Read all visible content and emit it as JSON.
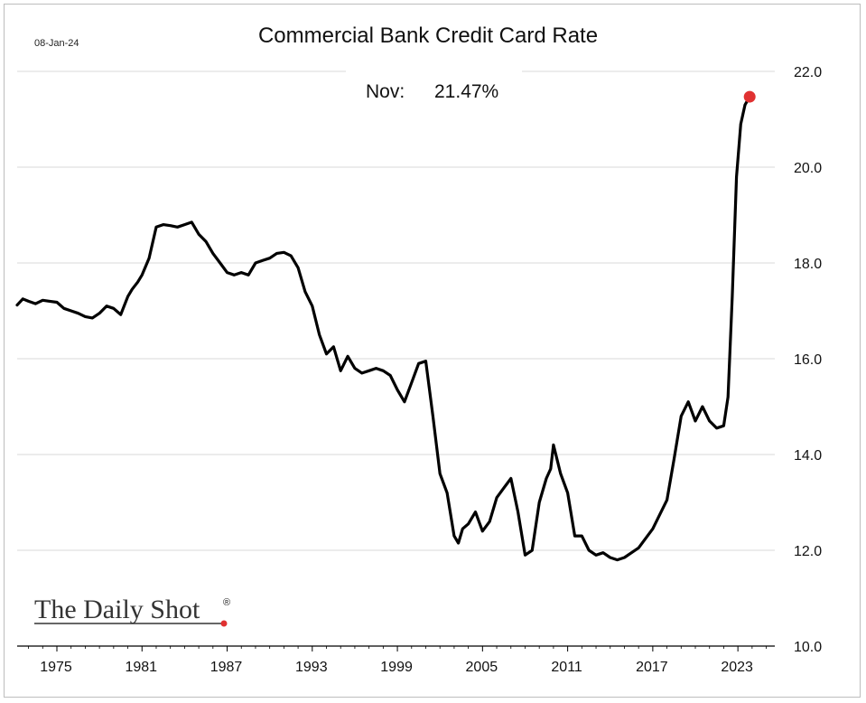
{
  "colors": {
    "line": "#000000",
    "marker": "#e03131",
    "grid": "#d9d9d9",
    "axis": "#000000"
  },
  "chart_data": {
    "type": "line",
    "title": "Commercial Bank Credit Card Rate",
    "date_label": "08-Jan-24",
    "annotation": {
      "label": "Nov:",
      "value": "21.47%"
    },
    "xlabel": "",
    "ylabel": "",
    "xlim": [
      1972.2,
      2025.6
    ],
    "ylim": [
      10.0,
      22.0
    ],
    "x_ticks": [
      1975,
      1981,
      1987,
      1993,
      1999,
      2005,
      2011,
      2017,
      2023
    ],
    "y_ticks": [
      "10.0",
      "12.0",
      "14.0",
      "16.0",
      "18.0",
      "20.0",
      "22.0"
    ],
    "y_axis_side": "right",
    "grid": "horizontal",
    "last_point": {
      "x": 2023.83,
      "y": 21.47
    },
    "series": [
      {
        "x": [
          1972.2,
          1972.6,
          1973.0,
          1973.5,
          1974.0,
          1974.5,
          1975.0,
          1975.5,
          1976.0,
          1976.5,
          1977.0,
          1977.5,
          1978.0,
          1978.5,
          1979.0,
          1979.5,
          1980.0,
          1980.3,
          1980.7,
          1981.0,
          1981.5,
          1982.0,
          1982.5,
          1983.0,
          1983.5,
          1984.0,
          1984.5,
          1985.0,
          1985.5,
          1986.0,
          1986.5,
          1987.0,
          1987.5,
          1988.0,
          1988.5,
          1989.0,
          1989.5,
          1990.0,
          1990.5,
          1991.0,
          1991.5,
          1992.0,
          1992.5,
          1993.0,
          1993.5,
          1994.0,
          1994.5,
          1995.0,
          1995.5,
          1996.0,
          1996.5,
          1997.0,
          1997.5,
          1998.0,
          1998.5,
          1999.0,
          1999.5,
          2000.0,
          2000.5,
          2001.0,
          2001.5,
          2002.0,
          2002.5,
          2003.0,
          2003.3,
          2003.6,
          2004.0,
          2004.5,
          2005.0,
          2005.5,
          2006.0,
          2006.5,
          2007.0,
          2007.5,
          2008.0,
          2008.5,
          2009.0,
          2009.5,
          2009.8,
          2010.0,
          2010.5,
          2011.0,
          2011.5,
          2012.0,
          2012.5,
          2013.0,
          2013.5,
          2014.0,
          2014.5,
          2015.0,
          2015.5,
          2016.0,
          2016.5,
          2017.0,
          2017.5,
          2018.0,
          2018.5,
          2019.0,
          2019.5,
          2020.0,
          2020.5,
          2021.0,
          2021.5,
          2022.0,
          2022.3,
          2022.6,
          2022.9,
          2023.2,
          2023.5,
          2023.83
        ],
        "y": [
          17.12,
          17.25,
          17.2,
          17.15,
          17.22,
          17.2,
          17.18,
          17.05,
          17.0,
          16.95,
          16.88,
          16.85,
          16.95,
          17.1,
          17.05,
          16.92,
          17.3,
          17.45,
          17.6,
          17.75,
          18.1,
          18.75,
          18.8,
          18.78,
          18.75,
          18.8,
          18.85,
          18.6,
          18.45,
          18.2,
          18.0,
          17.8,
          17.75,
          17.8,
          17.75,
          18.0,
          18.05,
          18.1,
          18.2,
          18.22,
          18.15,
          17.9,
          17.4,
          17.1,
          16.5,
          16.1,
          16.25,
          15.75,
          16.05,
          15.8,
          15.7,
          15.75,
          15.8,
          15.75,
          15.65,
          15.35,
          15.1,
          15.5,
          15.9,
          15.95,
          14.8,
          13.6,
          13.2,
          12.3,
          12.15,
          12.45,
          12.55,
          12.8,
          12.4,
          12.6,
          13.1,
          13.3,
          13.5,
          12.8,
          11.9,
          12.0,
          13.0,
          13.5,
          13.7,
          14.2,
          13.6,
          13.2,
          12.3,
          12.3,
          12.0,
          11.9,
          11.95,
          11.85,
          11.8,
          11.85,
          11.95,
          12.05,
          12.25,
          12.45,
          12.75,
          13.05,
          13.9,
          14.8,
          15.1,
          14.7,
          15.0,
          14.7,
          14.55,
          14.6,
          15.2,
          17.3,
          19.8,
          20.9,
          21.3,
          21.47
        ]
      }
    ]
  },
  "logo": {
    "text": "The Daily Shot",
    "mark": "®"
  }
}
